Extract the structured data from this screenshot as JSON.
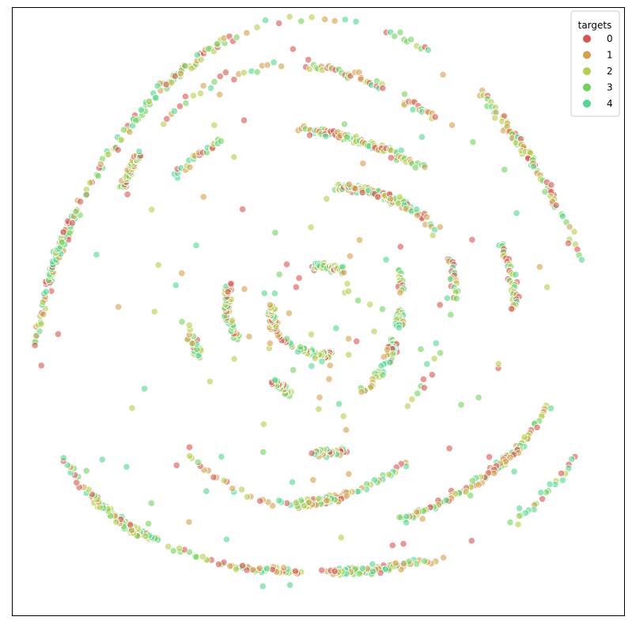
{
  "chart_data": {
    "type": "scatter",
    "title": "",
    "xlabel": "",
    "ylabel": "",
    "axes_visible": false,
    "grid": false,
    "xlim": [
      -1,
      1
    ],
    "ylim": [
      -1,
      1
    ],
    "legend": {
      "title": "targets",
      "placement": "top-right",
      "entries": [
        {
          "label": "0",
          "color": "#d9534f"
        },
        {
          "label": "1",
          "color": "#d4a04a"
        },
        {
          "label": "2",
          "color": "#b5cf4a"
        },
        {
          "label": "3",
          "color": "#6fd35a"
        },
        {
          "label": "4",
          "color": "#4fd88e"
        }
      ]
    },
    "structure": "spiral",
    "approximate_points_per_class": 300
  }
}
